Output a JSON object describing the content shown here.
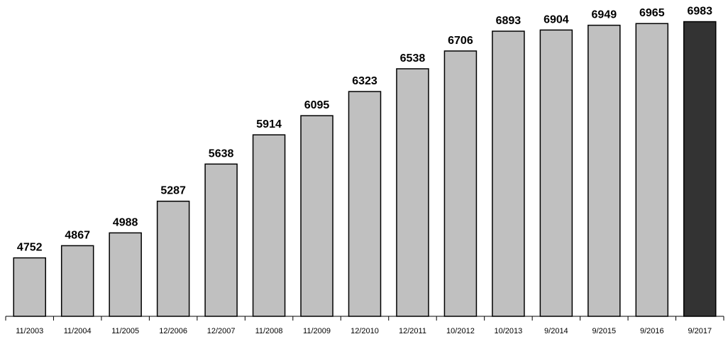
{
  "chart_data": {
    "type": "bar",
    "title": "",
    "xlabel": "",
    "ylabel": "",
    "categories": [
      "11/2003",
      "11/2004",
      "11/2005",
      "12/2006",
      "12/2007",
      "11/2008",
      "11/2009",
      "12/2010",
      "12/2011",
      "10/2012",
      "10/2013",
      "9/2014",
      "9/2015",
      "9/2016",
      "9/2017"
    ],
    "values": [
      4752,
      4867,
      4988,
      5287,
      5638,
      5914,
      6095,
      6323,
      6538,
      6706,
      6893,
      6904,
      6949,
      6965,
      6983
    ],
    "ylim": [
      4200,
      7000
    ],
    "grid": false,
    "legend": "none",
    "colors": {
      "bar": "#c0c0c0",
      "highlight_bar": "#333333",
      "outline": "#000000"
    },
    "highlight_index": 14
  }
}
